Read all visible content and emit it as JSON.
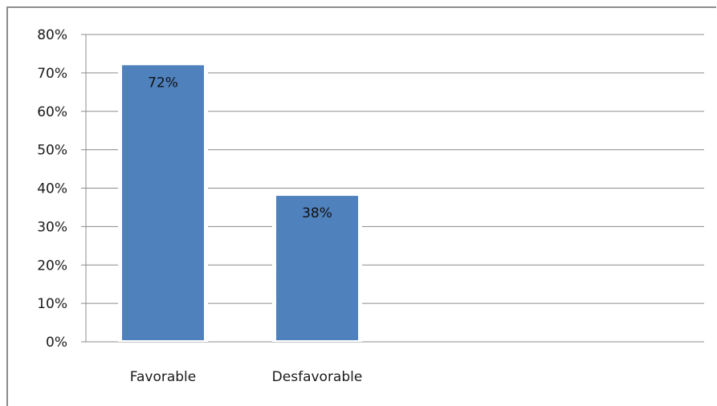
{
  "chart_data": {
    "type": "bar",
    "title": "",
    "xlabel": "",
    "ylabel": "",
    "categories": [
      "Favorable",
      "Desfavorable"
    ],
    "values": [
      72,
      38
    ],
    "data_labels": [
      "72%",
      "38%"
    ],
    "ylim": [
      0,
      80
    ],
    "y_ticks": [
      0,
      10,
      20,
      30,
      40,
      50,
      60,
      70,
      80
    ],
    "y_tick_labels": [
      "0%",
      "10%",
      "20%",
      "30%",
      "40%",
      "50%",
      "60%",
      "70%",
      "80%"
    ],
    "grid": true,
    "legend": "none",
    "colors": {
      "bar": "#4f81bd",
      "grid": "#8c8c8c",
      "axis": "#8c8c8c",
      "text": "#1a1a1a"
    }
  }
}
